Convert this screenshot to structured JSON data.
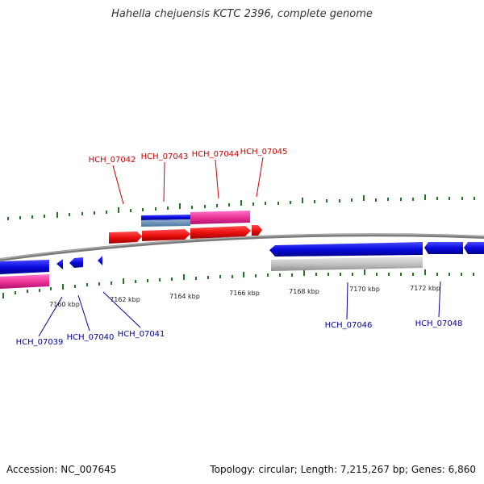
{
  "title": "Hahella chejuensis KCTC 2396, complete genome",
  "footer": {
    "accession": "Accession: NC_007645",
    "summary": "Topology: circular; Length: 7,215,267 bp; Genes: 6,860"
  },
  "colors": {
    "forward_label": "#cc0000",
    "reverse_label": "#000099",
    "forward_gene": "#ee1111",
    "reverse_gene": "#0a0ae0",
    "rna_feature": "#ee3399",
    "misc_feature": "#c0c0c0",
    "tick": "#227722",
    "backbone": "#808080"
  },
  "kbp_labels": [
    {
      "label": "7160 kbp"
    },
    {
      "label": "7162 kbp"
    },
    {
      "label": "7164 kbp"
    },
    {
      "label": "7166 kbp"
    },
    {
      "label": "7168 kbp"
    },
    {
      "label": "7170 kbp"
    },
    {
      "label": "7172 kbp"
    }
  ],
  "forward_genes": [
    {
      "name": "HCH_07042"
    },
    {
      "name": "HCH_07043"
    },
    {
      "name": "HCH_07044"
    },
    {
      "name": "HCH_07045"
    }
  ],
  "reverse_genes": [
    {
      "name": "HCH_07039"
    },
    {
      "name": "HCH_07040"
    },
    {
      "name": "HCH_07041"
    },
    {
      "name": "HCH_07046"
    },
    {
      "name": "HCH_07048"
    }
  ]
}
